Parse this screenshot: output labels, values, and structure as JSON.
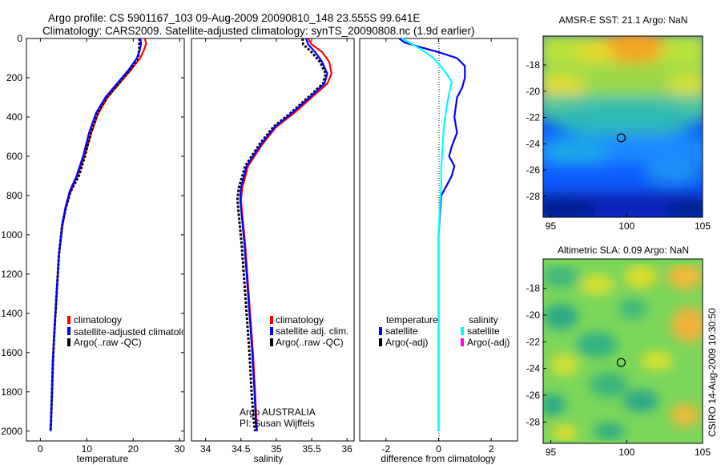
{
  "header": {
    "line1": "Argo profile: CS 5901167_103 09-Aug-2009 20090810_148 23.555S 99.641E",
    "line2": "Climatology: CARS2009. Satellite-adjusted climatology: synTS_20090808.nc (1.9d earlier)"
  },
  "side_label": "CSIRO 14-Aug-2009 10:30:50",
  "colors": {
    "climatology": "#ff0000",
    "satellite": "#0000ff",
    "argo": "#000000",
    "salinity_satellite": "#00ffff",
    "salinity_argo_adj": "#ff00ff"
  },
  "chart_data": [
    {
      "type": "line",
      "xlabel": "temperature",
      "ylabel": "",
      "xlim": [
        -3,
        31
      ],
      "ylim": [
        2050,
        0
      ],
      "xticks": [
        0,
        10,
        20,
        30
      ],
      "yticks": [
        0,
        200,
        400,
        600,
        800,
        1000,
        1200,
        1400,
        1600,
        1800,
        2000
      ],
      "legend": [
        "climatology",
        "satellite-adjusted climatolog",
        "Argo(..raw -QC)"
      ],
      "series": [
        {
          "name": "climatology",
          "color": "#ff0000",
          "x": [
            22.5,
            22.8,
            22.3,
            21.5,
            19.5,
            17.0,
            14.5,
            12.5,
            11.0,
            9.5,
            8.0,
            6.5,
            5.5,
            4.8,
            4.0,
            3.5,
            3.0,
            2.7,
            2.5,
            2.3,
            2.2
          ],
          "y": [
            0,
            25,
            60,
            100,
            160,
            230,
            300,
            380,
            480,
            600,
            700,
            780,
            860,
            950,
            1100,
            1300,
            1500,
            1650,
            1800,
            1950,
            2000
          ]
        },
        {
          "name": "satellite-adjusted climatolog",
          "color": "#0000ff",
          "x": [
            21.5,
            21.7,
            21.4,
            20.8,
            19.0,
            16.5,
            14.0,
            12.0,
            10.5,
            9.2,
            7.8,
            6.3,
            5.4,
            4.7,
            4.0,
            3.5,
            3.0,
            2.7,
            2.5,
            2.3,
            2.2
          ],
          "y": [
            0,
            25,
            60,
            100,
            160,
            230,
            300,
            380,
            480,
            600,
            700,
            780,
            860,
            950,
            1100,
            1300,
            1500,
            1650,
            1800,
            1950,
            2000
          ]
        },
        {
          "name": "Argo(..raw -QC)",
          "color": "#000000",
          "x": [
            21.4,
            21.3,
            21.3,
            21.0,
            19.3,
            16.8,
            14.3,
            12.3,
            10.9,
            9.6,
            8.3,
            6.5,
            5.5,
            4.7,
            4.0,
            3.5,
            3.0,
            2.7,
            2.5,
            2.3,
            2.2
          ],
          "y": [
            0,
            25,
            60,
            100,
            160,
            230,
            300,
            380,
            480,
            600,
            700,
            780,
            860,
            950,
            1100,
            1300,
            1500,
            1650,
            1800,
            1950,
            2000
          ]
        }
      ]
    },
    {
      "type": "line",
      "xlabel": "salinity",
      "ylabel": "",
      "xlim": [
        33.8,
        36.1
      ],
      "ylim": [
        2050,
        0
      ],
      "xticks": [
        34,
        34.5,
        35,
        35.5,
        36
      ],
      "xticklabels": [
        "34",
        "34.5",
        "35",
        "35.5",
        "36"
      ],
      "legend": [
        "climatology",
        "satellite adj. clim.",
        "Argo(..raw -QC)"
      ],
      "annotation": [
        "Argo AUSTRALIA",
        "PI: Susan Wijffels"
      ],
      "series": [
        {
          "name": "climatology",
          "color": "#ff0000",
          "x": [
            35.45,
            35.5,
            35.65,
            35.75,
            35.78,
            35.72,
            35.5,
            35.25,
            35.0,
            34.8,
            34.6,
            34.52,
            34.5,
            34.52,
            34.56,
            34.6,
            34.64,
            34.67,
            34.7,
            34.72,
            34.73
          ],
          "y": [
            0,
            30,
            70,
            120,
            180,
            230,
            300,
            380,
            450,
            540,
            650,
            760,
            820,
            900,
            1050,
            1250,
            1450,
            1600,
            1800,
            1950,
            2000
          ]
        },
        {
          "name": "satellite adj. clim.",
          "color": "#0000ff",
          "x": [
            35.42,
            35.45,
            35.55,
            35.65,
            35.72,
            35.68,
            35.47,
            35.22,
            34.98,
            34.78,
            34.58,
            34.5,
            34.49,
            34.51,
            34.55,
            34.59,
            34.63,
            34.66,
            34.69,
            34.71,
            34.72
          ],
          "y": [
            0,
            30,
            70,
            120,
            180,
            230,
            300,
            380,
            450,
            540,
            650,
            760,
            820,
            900,
            1050,
            1250,
            1450,
            1600,
            1800,
            1950,
            2000
          ]
        },
        {
          "name": "Argo(..raw -QC)",
          "color": "#000000",
          "x": [
            35.37,
            35.38,
            35.5,
            35.62,
            35.7,
            35.66,
            35.45,
            35.2,
            34.96,
            34.76,
            34.56,
            34.47,
            34.45,
            34.47,
            34.51,
            34.55,
            34.59,
            34.62,
            34.65,
            34.68,
            34.7
          ],
          "y": [
            0,
            30,
            70,
            120,
            180,
            230,
            300,
            380,
            450,
            540,
            650,
            760,
            820,
            900,
            1050,
            1250,
            1450,
            1600,
            1800,
            1950,
            2000
          ]
        }
      ]
    },
    {
      "type": "line",
      "xlabel": "difference from climatology",
      "ylabel": "",
      "xlim": [
        -3,
        3
      ],
      "ylim": [
        2050,
        0
      ],
      "xticks": [
        -2,
        0,
        2
      ],
      "legend_groups": [
        {
          "title": "temperature",
          "items": [
            "satellite",
            "Argo(-adj)"
          ]
        },
        {
          "title": "salinity",
          "items": [
            "satellite",
            "Argo(-adj)"
          ]
        }
      ],
      "series": [
        {
          "name": "temperature satellite",
          "color": "#0000ff",
          "x": [
            -1.5,
            -1.3,
            -0.8,
            0.0,
            0.7,
            1.0,
            1.0,
            0.9,
            0.7,
            0.6,
            0.7,
            0.5,
            0.4,
            0.6,
            0.5,
            0.3,
            0.1,
            0.05,
            0.0,
            0.0,
            0.0,
            0.0,
            0.0
          ],
          "y": [
            0,
            20,
            40,
            70,
            100,
            140,
            200,
            250,
            300,
            400,
            480,
            550,
            600,
            650,
            700,
            750,
            800,
            900,
            1000,
            1200,
            1500,
            1800,
            2000
          ]
        },
        {
          "name": "salinity satellite",
          "color": "#00ffff",
          "x": [
            -1.4,
            -1.0,
            -0.6,
            -0.2,
            0.2,
            0.5,
            0.4,
            0.3,
            0.2,
            0.15,
            0.1,
            0.1,
            0.05,
            0.0,
            0.0,
            0.0,
            0.0,
            0.0
          ],
          "y": [
            0,
            30,
            60,
            100,
            160,
            220,
            280,
            350,
            450,
            550,
            650,
            750,
            850,
            1000,
            1200,
            1500,
            1800,
            2000
          ]
        }
      ]
    },
    {
      "type": "heatmap",
      "title": "AMSR-E SST: 21.1 Argo: NaN",
      "xlim": [
        94.5,
        105
      ],
      "ylim": [
        -29.6,
        -15.8
      ],
      "xticks": [
        95,
        100,
        105
      ],
      "yticks": [
        -18,
        -20,
        -22,
        -24,
        -26,
        -28
      ],
      "marker": {
        "x": 99.64,
        "y": -23.55
      }
    },
    {
      "type": "heatmap",
      "title": "Altimetric SLA: 0.09 Argo: NaN",
      "xlim": [
        94.5,
        105
      ],
      "ylim": [
        -29.6,
        -15.8
      ],
      "xticks": [
        95,
        100,
        105
      ],
      "yticks": [
        -18,
        -20,
        -22,
        -24,
        -26,
        -28
      ],
      "marker": {
        "x": 99.64,
        "y": -23.55
      }
    }
  ]
}
